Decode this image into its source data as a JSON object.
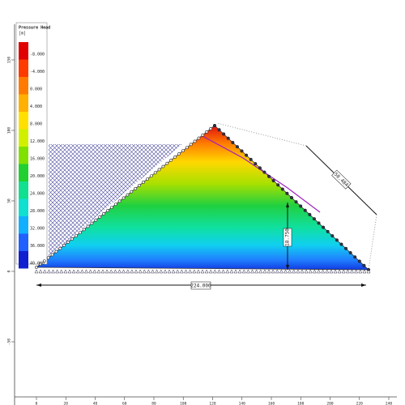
{
  "legend": {
    "title": "Pressure Head",
    "unit": "[m]",
    "labels": [
      "-8.000",
      "-4.000",
      "0.000",
      "4.000",
      "8.000",
      "12.000",
      "16.000",
      "20.000",
      "24.000",
      "28.000",
      "32.000",
      "36.000",
      "40.000"
    ]
  },
  "dimensions": {
    "base": "224.000",
    "height": "18.750",
    "slope": "50.484"
  },
  "axes": {
    "x_ticks": [
      0,
      20,
      40,
      60,
      80,
      100,
      120,
      140,
      160,
      180,
      200,
      220,
      240
    ],
    "y_ticks": [
      150,
      100,
      50,
      0,
      -50
    ]
  }
}
